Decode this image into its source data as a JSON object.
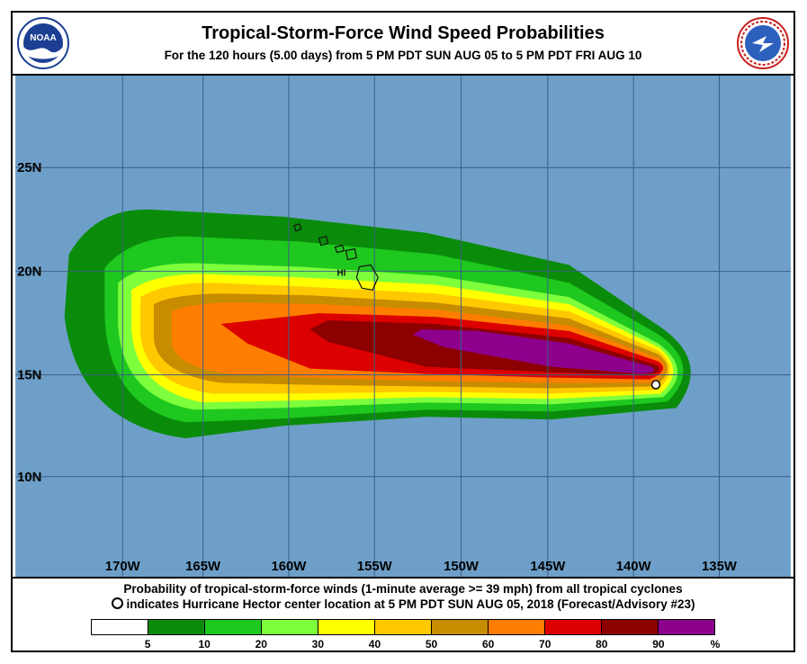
{
  "header": {
    "title": "Tropical-Storm-Force Wind Speed Probabilities",
    "subtitle": "For the 120 hours (5.00 days) from 5 PM PDT SUN AUG 05 to 5 PM PDT FRI AUG 10",
    "left_logo": "NOAA",
    "right_logo": "NATIONAL WEATHER SERVICE"
  },
  "map": {
    "latitude_labels": [
      "25N",
      "20N",
      "15N",
      "10N"
    ],
    "longitude_labels": [
      "170W",
      "165W",
      "160W",
      "155W",
      "150W",
      "145W",
      "140W",
      "135W"
    ],
    "island_label": "HI",
    "ocean_color": "#6e9fc8",
    "storm_marker": "hurricane-center-marker"
  },
  "footer": {
    "line1": "Probability of tropical-storm-force winds (1-minute average >= 39 mph) from all tropical cyclones",
    "line2": "indicates Hurricane Hector center location at 5 PM PDT SUN AUG 05, 2018 (Forecast/Advisory #23)"
  },
  "legend": {
    "colors": [
      "#ffffff",
      "#0a8c0a",
      "#1ec81e",
      "#7dff3c",
      "#ffff00",
      "#ffc800",
      "#c88c00",
      "#ff7d00",
      "#dc0000",
      "#8c0000",
      "#8c008c"
    ],
    "labels": [
      "5",
      "10",
      "20",
      "30",
      "40",
      "50",
      "60",
      "70",
      "80",
      "90",
      "%"
    ]
  }
}
